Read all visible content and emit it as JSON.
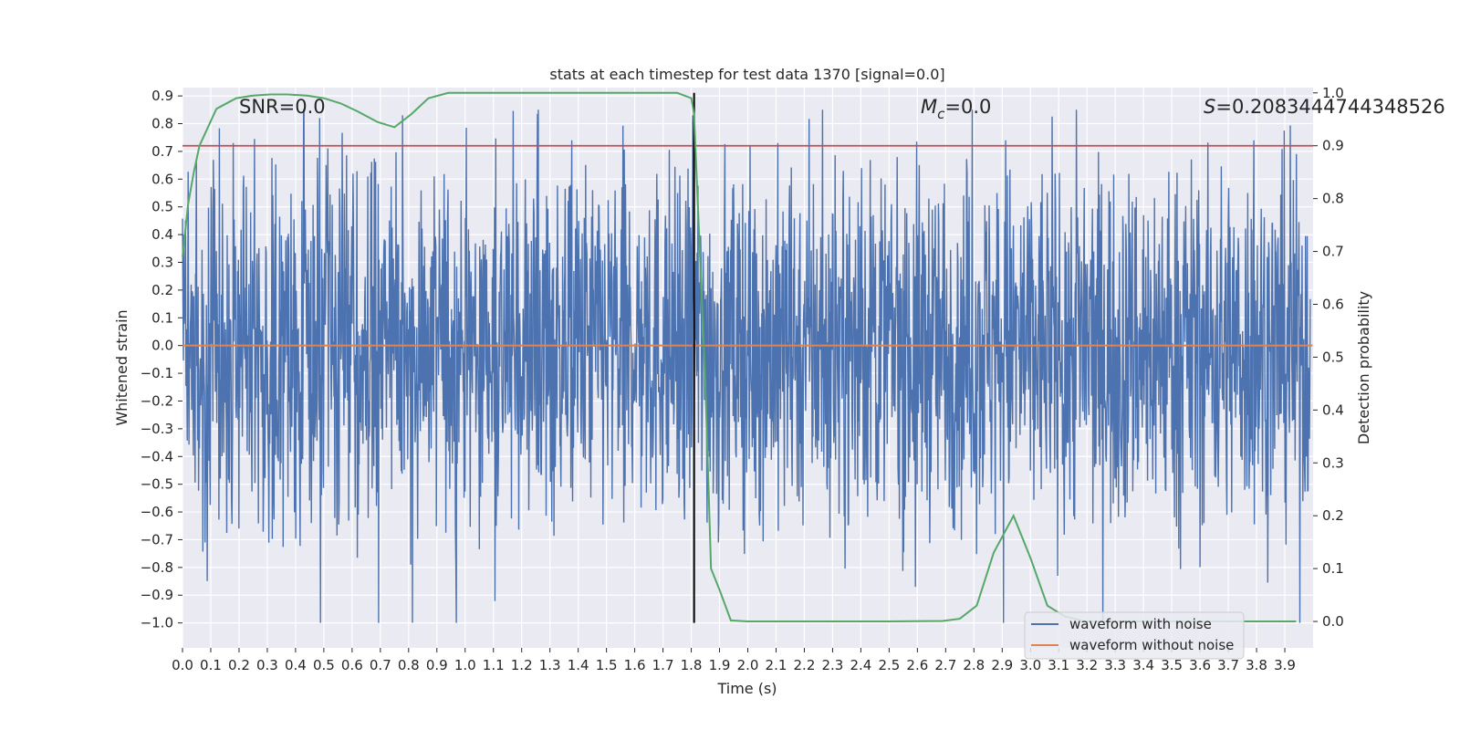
{
  "chart_data": {
    "type": "line",
    "title": "stats at each timestep for test data 1370 [signal=0.0]",
    "xlabel": "Time (s)",
    "ylabel_left": "Whitened strain",
    "ylabel_right": "Detection probability",
    "xlim": [
      0.0,
      4.0
    ],
    "ylim_left": [
      -1.09,
      0.93
    ],
    "ylim_right": [
      -0.05,
      1.01
    ],
    "x_ticks": [
      "0.0",
      "0.1",
      "0.2",
      "0.3",
      "0.4",
      "0.5",
      "0.6",
      "0.7",
      "0.8",
      "0.9",
      "1.0",
      "1.1",
      "1.2",
      "1.3",
      "1.4",
      "1.5",
      "1.6",
      "1.7",
      "1.8",
      "1.9",
      "2.0",
      "2.1",
      "2.2",
      "2.3",
      "2.4",
      "2.5",
      "2.6",
      "2.7",
      "2.8",
      "2.9",
      "3.0",
      "3.1",
      "3.2",
      "3.3",
      "3.4",
      "3.5",
      "3.6",
      "3.7",
      "3.8",
      "3.9"
    ],
    "y_ticks_left": [
      "0.9",
      "0.8",
      "0.7",
      "0.6",
      "0.5",
      "0.4",
      "0.3",
      "0.2",
      "0.1",
      "0.0",
      "−0.1",
      "−0.2",
      "−0.3",
      "−0.4",
      "−0.5",
      "−0.6",
      "−0.7",
      "−0.8",
      "−0.9",
      "−1.0"
    ],
    "y_ticks_right": [
      "1.0",
      "0.9",
      "0.8",
      "0.7",
      "0.6",
      "0.5",
      "0.4",
      "0.3",
      "0.2",
      "0.1",
      "0.0"
    ],
    "annotations": {
      "snr_text": "SNR=0.0",
      "mc_symbol": "M",
      "mc_sub": "c",
      "mc_value": "=0.0",
      "s_symbol": "S",
      "s_value": "=0.2083444744348526"
    },
    "legend": {
      "placement": "lower-right",
      "entries": [
        "waveform with noise",
        "waveform without noise"
      ]
    },
    "colors": {
      "noise": "#4c72b0",
      "clean": "#dd8452",
      "probability": "#55a868",
      "threshold": "#c44e52",
      "marker": "#000000",
      "plot_bg": "#eaeaf2",
      "grid": "#ffffff"
    },
    "series": [
      {
        "name": "waveform with noise",
        "axis": "left",
        "sample_rate": 2048,
        "summary": {
          "min": -1.0,
          "max": 0.85,
          "typical_amplitude": 0.3
        },
        "notable_peaks": [
          {
            "x": 0.18,
            "y": 0.73
          },
          {
            "x": 0.08,
            "y": -0.71
          },
          {
            "x": 0.49,
            "y": -1.0
          },
          {
            "x": 0.78,
            "y": 0.83
          },
          {
            "x": 0.81,
            "y": -0.79
          },
          {
            "x": 0.97,
            "y": -0.79
          },
          {
            "x": 1.38,
            "y": 0.74
          },
          {
            "x": 1.81,
            "y": 0.83
          },
          {
            "x": 1.9,
            "y": -0.71
          },
          {
            "x": 2.6,
            "y": -0.87
          },
          {
            "x": 2.92,
            "y": 0.74
          },
          {
            "x": 3.17,
            "y": 0.85
          },
          {
            "x": 3.8,
            "y": 0.74
          }
        ]
      },
      {
        "name": "waveform without noise",
        "axis": "left",
        "x": [
          0.0,
          4.0
        ],
        "y": [
          0.0,
          0.0
        ]
      },
      {
        "name": "detection probability",
        "axis": "right",
        "x": [
          0.0,
          0.02,
          0.04,
          0.06,
          0.12,
          0.19,
          0.25,
          0.31,
          0.37,
          0.44,
          0.5,
          0.56,
          0.62,
          0.69,
          0.75,
          0.81,
          0.87,
          0.94,
          1.0,
          1.25,
          1.5,
          1.75,
          1.8,
          1.81,
          1.85,
          1.87,
          1.9,
          1.94,
          2.0,
          2.5,
          2.69,
          2.75,
          2.81,
          2.87,
          2.94,
          3.0,
          3.06,
          3.12,
          3.19,
          3.5,
          3.75,
          3.94
        ],
        "y": [
          0.69,
          0.79,
          0.85,
          0.9,
          0.97,
          0.99,
          0.995,
          0.997,
          0.997,
          0.995,
          0.99,
          0.98,
          0.965,
          0.945,
          0.935,
          0.96,
          0.99,
          1.0,
          1.0,
          1.0,
          1.0,
          1.0,
          0.99,
          0.96,
          0.45,
          0.1,
          0.06,
          0.002,
          0.0,
          0.0,
          0.001,
          0.005,
          0.03,
          0.13,
          0.2,
          0.12,
          0.03,
          0.01,
          0.0,
          0.0,
          0.0,
          0.0
        ]
      },
      {
        "name": "detection threshold",
        "axis": "right",
        "y_value": 0.9
      },
      {
        "name": "detection time",
        "axis": "left",
        "x_value": 1.81
      }
    ]
  }
}
